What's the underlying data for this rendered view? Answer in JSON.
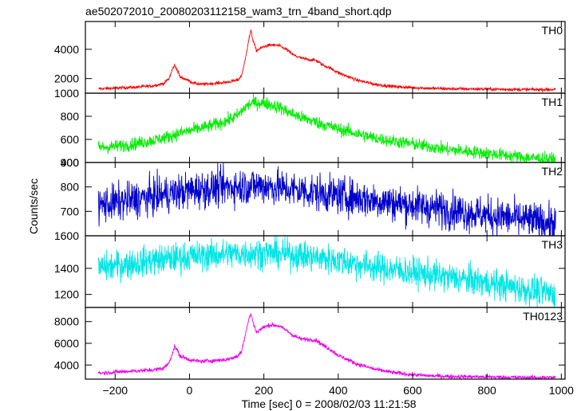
{
  "chart_data": {
    "type": "line",
    "title": "ae502072010_20080203112158_wam3_trn_4band_short.qdp",
    "xlabel": "Time [sec] 0 = 2008/02/03 11:21:58",
    "ylabel": "Counts/sec",
    "xlim": [
      -280,
      1010
    ],
    "x_ticks": [
      -200,
      0,
      200,
      400,
      600,
      800,
      1000
    ],
    "x_tick_labels": [
      "−200",
      "0",
      "200",
      "400",
      "600",
      "800",
      "1000"
    ],
    "grid": false,
    "panels": [
      {
        "name": "TH0",
        "color": "#ff0000",
        "ylim": [
          1000,
          5900
        ],
        "y_ticks": [
          2000,
          4000
        ],
        "y_tick_labels": [
          "2000",
          "4000"
        ],
        "top_label": "",
        "noise": 55,
        "x": [
          -245,
          -200,
          -150,
          -100,
          -70,
          -55,
          -45,
          -40,
          -35,
          -25,
          -15,
          -5,
          10,
          30,
          60,
          100,
          130,
          140,
          150,
          158,
          165,
          170,
          180,
          200,
          220,
          240,
          260,
          280,
          300,
          320,
          340,
          360,
          380,
          400,
          450,
          500,
          550,
          600,
          650,
          700,
          800,
          900,
          985
        ],
        "y": [
          1300,
          1350,
          1400,
          1500,
          1650,
          2000,
          2700,
          2900,
          2700,
          2100,
          2000,
          1900,
          1700,
          1600,
          1650,
          1750,
          1900,
          2200,
          3300,
          4500,
          5300,
          4700,
          3900,
          4200,
          4300,
          4250,
          4000,
          3600,
          3400,
          3300,
          3250,
          2900,
          2700,
          2400,
          1900,
          1600,
          1450,
          1380,
          1330,
          1300,
          1280,
          1250,
          1250
        ]
      },
      {
        "name": "TH1",
        "color": "#00ee00",
        "ylim": [
          400,
          1000
        ],
        "y_ticks": [
          400,
          600,
          800
        ],
        "y_tick_labels": [
          "400",
          "600",
          "800"
        ],
        "top_label": "1000",
        "noise": 28,
        "x": [
          -245,
          -200,
          -150,
          -100,
          -60,
          -20,
          20,
          60,
          100,
          130,
          150,
          170,
          190,
          210,
          240,
          270,
          300,
          350,
          400,
          450,
          500,
          600,
          700,
          800,
          900,
          985
        ],
        "y": [
          530,
          540,
          560,
          590,
          620,
          660,
          690,
          720,
          760,
          810,
          880,
          920,
          915,
          910,
          880,
          830,
          790,
          740,
          690,
          650,
          610,
          560,
          510,
          480,
          445,
          425
        ]
      },
      {
        "name": "TH2",
        "color": "#0000cc",
        "ylim": [
          600,
          900
        ],
        "y_ticks": [
          700,
          800
        ],
        "y_tick_labels": [
          "700",
          "800"
        ],
        "top_label": "900",
        "noise": 38,
        "x": [
          -245,
          -200,
          -100,
          0,
          100,
          200,
          300,
          400,
          500,
          600,
          700,
          800,
          900,
          985
        ],
        "y": [
          725,
          735,
          760,
          785,
          800,
          805,
          785,
          765,
          745,
          725,
          705,
          685,
          665,
          650
        ]
      },
      {
        "name": "TH3",
        "color": "#00e5e5",
        "ylim": [
          1100,
          1650
        ],
        "y_ticks": [
          1200,
          1400
        ],
        "y_tick_labels": [
          "1200",
          "1400"
        ],
        "top_label": "1600",
        "noise": 58,
        "x": [
          -245,
          -200,
          -100,
          0,
          100,
          200,
          300,
          400,
          500,
          600,
          700,
          800,
          900,
          985
        ],
        "y": [
          1400,
          1420,
          1460,
          1490,
          1510,
          1520,
          1500,
          1460,
          1410,
          1370,
          1330,
          1290,
          1240,
          1200
        ]
      },
      {
        "name": "TH0123",
        "color": "#ee00ee",
        "ylim": [
          2700,
          9300
        ],
        "y_ticks": [
          4000,
          6000,
          8000
        ],
        "y_tick_labels": [
          "4000",
          "6000",
          "8000"
        ],
        "top_label": "",
        "noise": 95,
        "x": [
          -245,
          -200,
          -150,
          -100,
          -70,
          -55,
          -45,
          -40,
          -35,
          -25,
          -15,
          -5,
          10,
          30,
          60,
          100,
          130,
          140,
          150,
          158,
          165,
          170,
          180,
          200,
          220,
          240,
          260,
          280,
          300,
          320,
          340,
          360,
          380,
          400,
          450,
          500,
          550,
          600,
          650,
          700,
          800,
          900,
          985
        ],
        "y": [
          3250,
          3350,
          3450,
          3550,
          3700,
          4200,
          5200,
          5700,
          5500,
          4800,
          4700,
          4550,
          4400,
          4350,
          4400,
          4500,
          4800,
          5300,
          6800,
          8000,
          8800,
          8000,
          7000,
          7500,
          7700,
          7600,
          7200,
          6700,
          6400,
          6350,
          6300,
          5800,
          5400,
          4900,
          4100,
          3600,
          3300,
          3100,
          3000,
          2950,
          2900,
          2850,
          2850
        ]
      }
    ]
  }
}
